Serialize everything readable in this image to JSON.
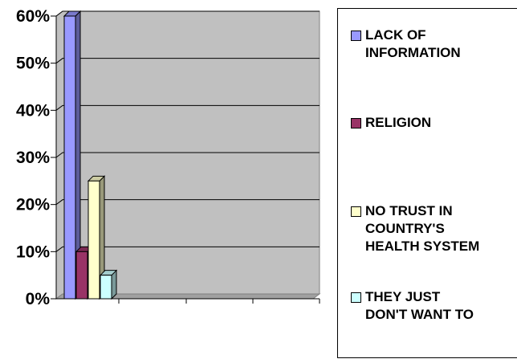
{
  "chart_data": {
    "type": "bar",
    "title": "",
    "xlabel": "",
    "ylabel": "",
    "ylim": [
      0,
      60
    ],
    "yticks": [
      "0%",
      "10%",
      "20%",
      "30%",
      "40%",
      "50%",
      "60%"
    ],
    "grid": true,
    "legend_position": "right",
    "plot_background": "#c0c0c0",
    "series": [
      {
        "name": "LACK OF\nINFORMATION",
        "values": [
          60
        ],
        "color": "#9999ff"
      },
      {
        "name": "RELIGION",
        "values": [
          10
        ],
        "color": "#993366"
      },
      {
        "name": "NO TRUST IN\nCOUNTRY'S\nHEALTH SYSTEM",
        "values": [
          25
        ],
        "color": "#ffffcc"
      },
      {
        "name": "THEY JUST\nDON'T WANT TO",
        "values": [
          5
        ],
        "color": "#ccffff"
      }
    ]
  }
}
